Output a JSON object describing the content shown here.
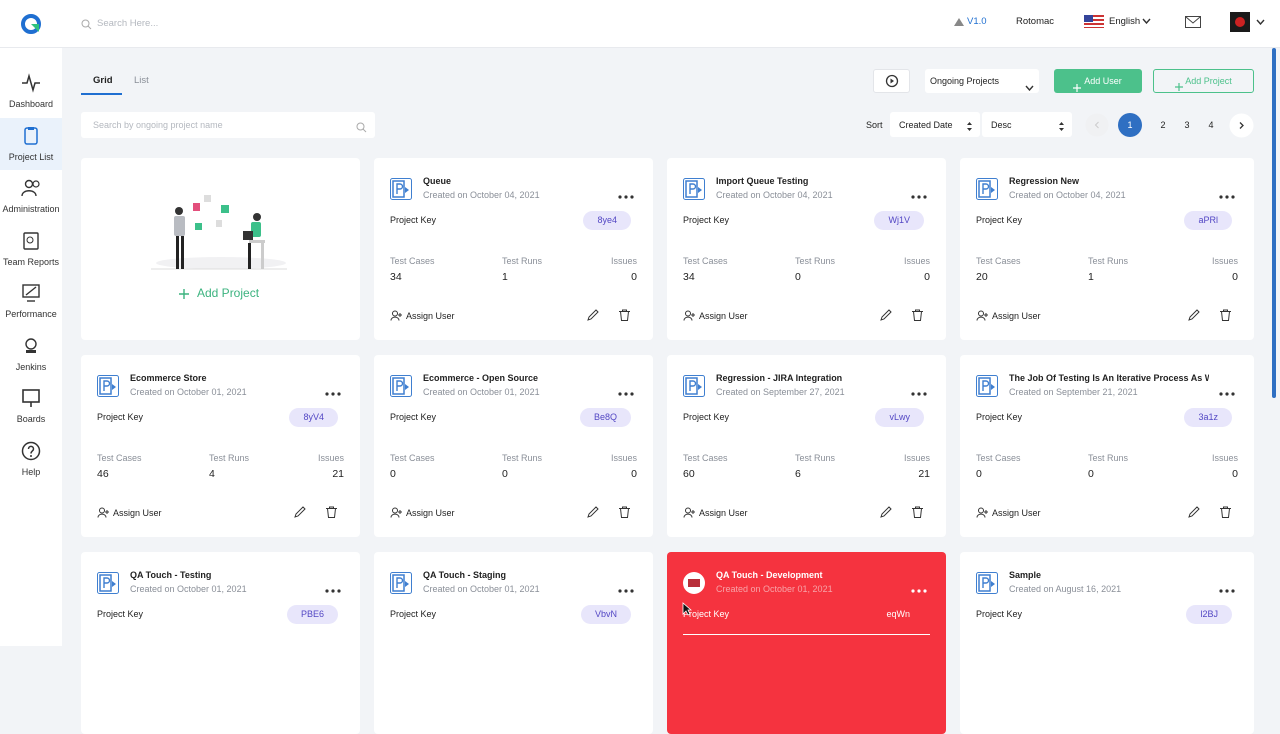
{
  "header": {
    "search_placeholder": "Search Here...",
    "version": "V1.0",
    "company": "Rotomac",
    "language": "English"
  },
  "sidebar": [
    "Dashboard",
    "Project List",
    "Administration",
    "Team Reports",
    "Performance",
    "Jenkins",
    "Boards",
    "Help"
  ],
  "toolbar": {
    "tabs": [
      "Grid",
      "List"
    ],
    "filter": "Ongoing Projects",
    "add_user": "Add User",
    "add_project": "Add Project",
    "search_placeholder": "Search by ongoing project name",
    "sort_label": "Sort",
    "sort_field": "Created Date",
    "sort_order": "Desc",
    "pages": [
      1,
      2,
      3,
      4
    ]
  },
  "add_card": "Add Project",
  "card_labels": {
    "project_key": "Project Key",
    "test_cases": "Test Cases",
    "test_runs": "Test Runs",
    "issues": "Issues",
    "assign_user": "Assign User"
  },
  "projects": [
    {
      "name": "Queue",
      "created": "Created on October 04, 2021",
      "key": "8ye4",
      "test_cases": 34,
      "test_runs": 1,
      "issues": 0
    },
    {
      "name": "Import Queue Testing",
      "created": "Created on October 04, 2021",
      "key": "Wj1V",
      "test_cases": 34,
      "test_runs": 0,
      "issues": 0
    },
    {
      "name": "Regression New",
      "created": "Created on October 04, 2021",
      "key": "aPRl",
      "test_cases": 20,
      "test_runs": 1,
      "issues": 0
    },
    {
      "name": "Ecommerce Store",
      "created": "Created on October 01, 2021",
      "key": "8yV4",
      "test_cases": 46,
      "test_runs": 4,
      "issues": 21
    },
    {
      "name": "Ecommerce - Open Source",
      "created": "Created on October 01, 2021",
      "key": "Be8Q",
      "test_cases": 0,
      "test_runs": 0,
      "issues": 0
    },
    {
      "name": "Regression - JIRA Integration",
      "created": "Created on September 27, 2021",
      "key": "vLwy",
      "test_cases": 60,
      "test_runs": 6,
      "issues": 21
    },
    {
      "name": "The Job Of Testing Is An Iterative Process As Wh",
      "created": "Created on September 21, 2021",
      "key": "3a1z",
      "test_cases": 0,
      "test_runs": 0,
      "issues": 0
    },
    {
      "name": "QA Touch - Testing",
      "created": "Created on October 01, 2021",
      "key": "PBE6"
    },
    {
      "name": "QA Touch - Staging",
      "created": "Created on October 01, 2021",
      "key": "VbvN"
    },
    {
      "name": "QA Touch - Development",
      "created": "Created on October 01, 2021",
      "key": "eqWn"
    },
    {
      "name": "Sample",
      "created": "Created on August 16, 2021",
      "key": "l2BJ"
    }
  ]
}
